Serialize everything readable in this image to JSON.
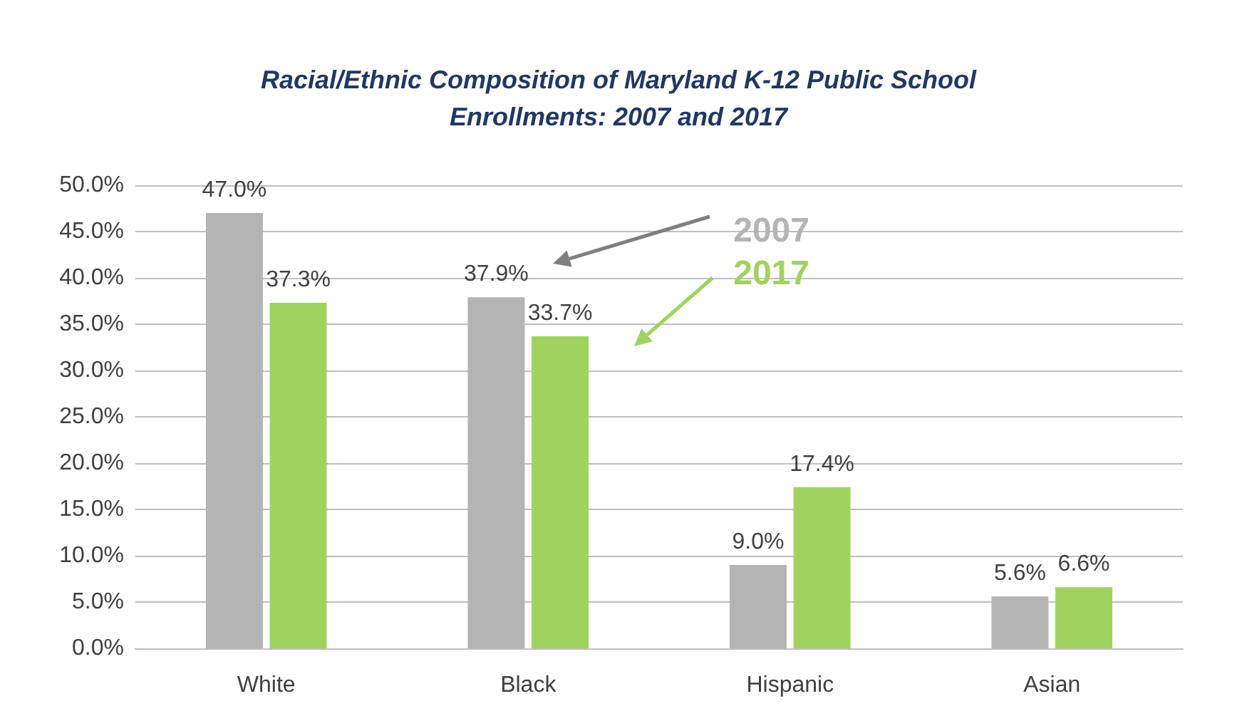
{
  "chart_data": {
    "type": "bar",
    "title": "Racial/Ethnic Composition of Maryland K-12 Public School\nEnrollments: 2007 and 2017",
    "categories": [
      "White",
      "Black",
      "Hispanic",
      "Asian"
    ],
    "series": [
      {
        "name": "2007",
        "color": "#b4b4b4",
        "values": [
          47.0,
          37.9,
          9.0,
          5.6
        ],
        "value_labels": [
          "47.0%",
          "37.9%",
          "9.0%",
          "5.6%"
        ]
      },
      {
        "name": "2017",
        "color": "#a0d35e",
        "values": [
          37.3,
          33.7,
          17.4,
          6.6
        ],
        "value_labels": [
          "37.3%",
          "33.7%",
          "17.4%",
          "6.6%"
        ]
      }
    ],
    "ylim": [
      0,
      50
    ],
    "yticks": [
      {
        "value": 0,
        "label": "0.0%"
      },
      {
        "value": 5,
        "label": "5.0%"
      },
      {
        "value": 10,
        "label": "10.0%"
      },
      {
        "value": 15,
        "label": "15.0%"
      },
      {
        "value": 20,
        "label": "20.0%"
      },
      {
        "value": 25,
        "label": "25.0%"
      },
      {
        "value": 30,
        "label": "30.0%"
      },
      {
        "value": 35,
        "label": "35.0%"
      },
      {
        "value": 40,
        "label": "40.0%"
      },
      {
        "value": 45,
        "label": "45.0%"
      },
      {
        "value": 50,
        "label": "50.0%"
      }
    ],
    "grid": "y",
    "legend": "top right"
  }
}
